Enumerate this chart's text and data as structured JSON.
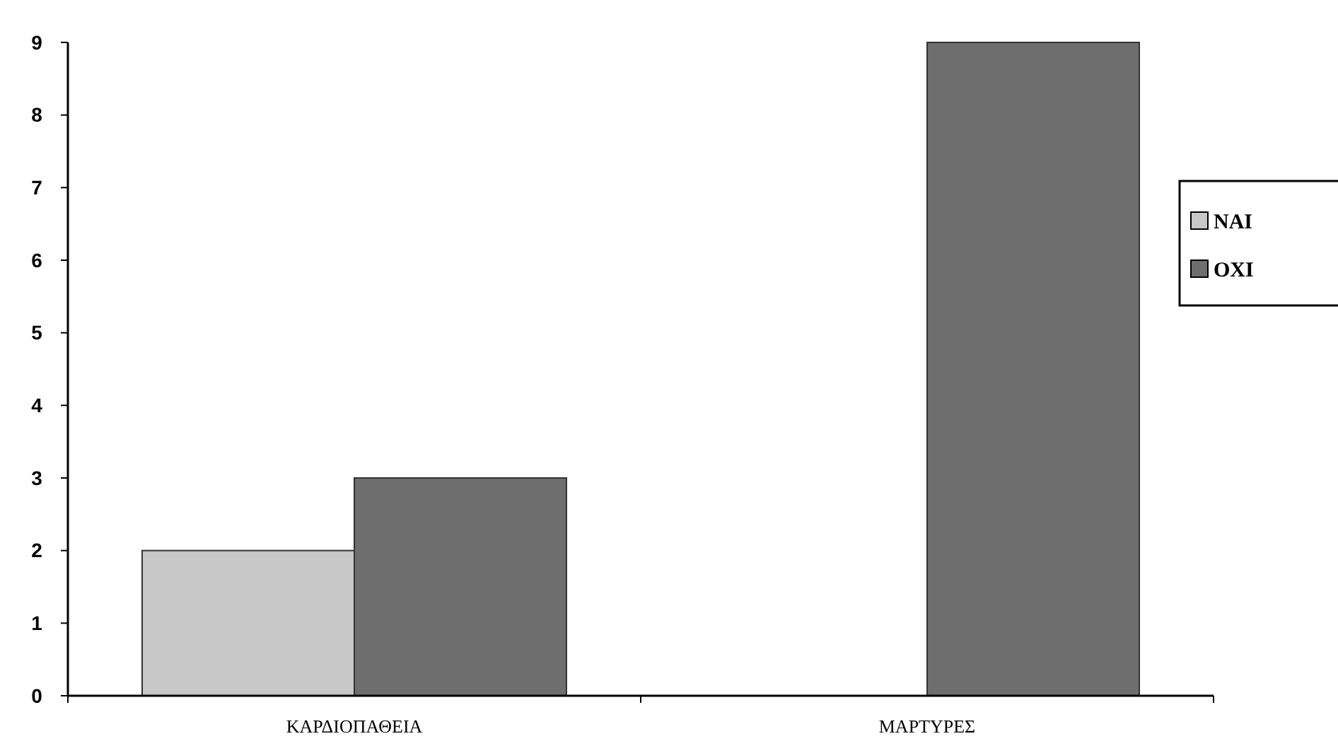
{
  "chart_data": {
    "type": "bar",
    "categories": [
      "ΚΑΡΔΙΟΠΑΘΕΙΑ",
      "ΜΑΡΤΥΡΕΣ"
    ],
    "series": [
      {
        "name": "ΝΑΙ",
        "color": "#c8c8c8",
        "values": [
          2,
          0
        ]
      },
      {
        "name": "ΟΧΙ",
        "color": "#6e6e6e",
        "values": [
          3,
          9
        ]
      }
    ],
    "ylim": [
      0,
      9
    ],
    "yticks": [
      0,
      1,
      2,
      3,
      4,
      5,
      6,
      7,
      8,
      9
    ],
    "legend": "right",
    "grid": false
  }
}
